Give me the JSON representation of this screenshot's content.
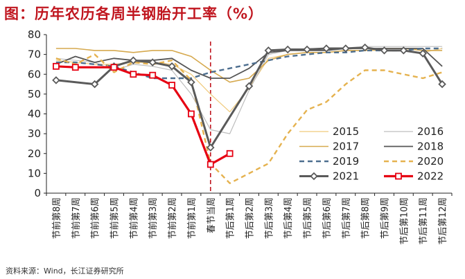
{
  "title": "图：历年农历各周半钢胎开工率（%）",
  "source": "资料来源：Wind，长江证券研究所",
  "chart_data": {
    "type": "line",
    "title": "图：历年农历各周半钢胎开工率（%）",
    "xlabel": "",
    "ylabel": "",
    "ylim": [
      0,
      80
    ],
    "yticks": [
      0,
      10,
      20,
      30,
      40,
      50,
      60,
      70,
      80
    ],
    "grid": false,
    "legend_position": "bottom-right",
    "categories": [
      "节前第8周",
      "节前第7周",
      "节前第6周",
      "节前第5周",
      "节前第4周",
      "节前第3周",
      "节前第2周",
      "节前第1周",
      "春节当周",
      "节后第1周",
      "节后第2周",
      "节后第3周",
      "节后第4周",
      "节后第5周",
      "节后第6周",
      "节后第7周",
      "节后第8周",
      "节后第9周",
      "节后第10周",
      "节后第11周",
      "节后第12周"
    ],
    "marker_line_category": "春节当周",
    "series": [
      {
        "name": "2015",
        "color": "#f0c97a",
        "style": "solid",
        "width": 1.2,
        "marker": "none",
        "values": [
          67,
          66,
          65,
          65,
          66,
          66,
          65,
          60,
          50,
          41,
          53,
          68,
          70,
          71,
          71,
          72,
          72,
          72,
          72,
          71,
          73
        ]
      },
      {
        "name": "2016",
        "color": "#bdbdbd",
        "style": "solid",
        "width": 1.2,
        "marker": "none",
        "values": [
          68,
          67,
          66,
          62,
          65,
          64,
          62,
          50,
          32,
          30,
          52,
          70,
          72,
          73,
          73,
          73,
          74,
          74,
          74,
          74,
          74
        ]
      },
      {
        "name": "2017",
        "color": "#d6a94e",
        "style": "solid",
        "width": 1.6,
        "marker": "none",
        "values": [
          73,
          73,
          72,
          72,
          71,
          72,
          72,
          69,
          62,
          56,
          58,
          67,
          70,
          71,
          71,
          72,
          72,
          73,
          73,
          72,
          72
        ]
      },
      {
        "name": "2018",
        "color": "#555555",
        "style": "solid",
        "width": 1.8,
        "marker": "none",
        "values": [
          65,
          69,
          66,
          68,
          67,
          67,
          68,
          62,
          58,
          58,
          63,
          71,
          72,
          72,
          72,
          73,
          73,
          73,
          73,
          73,
          64
        ]
      },
      {
        "name": "2019",
        "color": "#4d6e8f",
        "style": "dashed",
        "width": 2.4,
        "marker": "none",
        "values": [
          66,
          66,
          65,
          64,
          61,
          58,
          58,
          58,
          61,
          63,
          65,
          67,
          69,
          70,
          71,
          71,
          72,
          72,
          72,
          73,
          73
        ]
      },
      {
        "name": "2020",
        "color": "#e5b24f",
        "style": "dashed",
        "width": 2.4,
        "marker": "none",
        "values": [
          68,
          65,
          70,
          61,
          66,
          65,
          67,
          57,
          15,
          5,
          10,
          15,
          30,
          42,
          46,
          55,
          62,
          62,
          60,
          58,
          61
        ]
      },
      {
        "name": "2021",
        "color": "#5a5a5a",
        "style": "solid",
        "width": 3,
        "marker": "diamond",
        "values": [
          57,
          null,
          55,
          64,
          67,
          66,
          64,
          56,
          23,
          null,
          54,
          72,
          72.5,
          72.5,
          73,
          73,
          73.5,
          72,
          72,
          70.5,
          55
        ]
      },
      {
        "name": "2022",
        "color": "#e60012",
        "style": "solid",
        "width": 3.2,
        "marker": "square",
        "values": [
          64,
          63.5,
          null,
          63.5,
          60,
          59.5,
          54.5,
          40,
          14.5,
          20,
          null,
          null,
          null,
          null,
          null,
          null,
          null,
          null,
          null,
          null,
          null
        ]
      }
    ]
  }
}
